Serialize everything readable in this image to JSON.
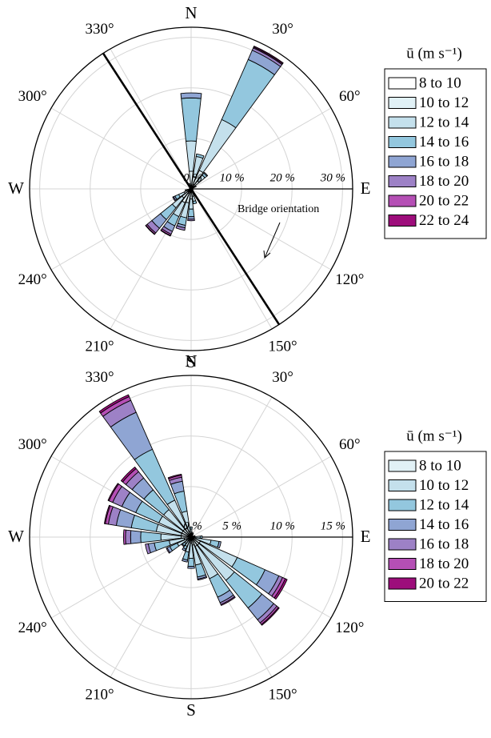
{
  "chart_data": [
    {
      "type": "polar-bar",
      "title": "",
      "directions": {
        "n": "N",
        "e": "E",
        "s": "S",
        "w": "W"
      },
      "angle_labels": [
        "30°",
        "60°",
        "120°",
        "150°",
        "210°",
        "240°",
        "300°",
        "330°"
      ],
      "radial_ticks": [
        "0 %",
        "10 %",
        "20 %",
        "30 %"
      ],
      "r_max": 32,
      "sector_count": 24,
      "legend_title": "ū (m s⁻¹)",
      "bins": [
        "8 to 10",
        "10 to 12",
        "12 to 14",
        "14 to 16",
        "16 to 18",
        "18 to 20",
        "20 to 22",
        "22 to 24"
      ],
      "colors": [
        "#ffffff",
        "#e1f1f6",
        "#c4e0ec",
        "#93c7de",
        "#8fa5d3",
        "#9d81c6",
        "#b54fb5",
        "#9d0d7b"
      ],
      "annotation": "Bridge orientation",
      "bridge_line_deg": 327,
      "sectors": [
        {
          "dir": 0,
          "values": [
            0.5,
            3,
            6,
            8.5,
            1,
            0,
            0,
            0
          ]
        },
        {
          "dir": 15,
          "values": [
            0.5,
            2,
            4,
            0.5,
            0,
            0,
            0,
            0
          ]
        },
        {
          "dir": 30,
          "values": [
            1,
            3,
            11,
            13,
            2,
            0.5,
            0.2,
            0.2
          ]
        },
        {
          "dir": 45,
          "values": [
            0.5,
            1.5,
            1.5,
            0.5,
            0.2,
            0,
            0,
            0
          ]
        },
        {
          "dir": 60,
          "values": [
            0.3,
            0.5,
            0.3,
            0,
            0,
            0,
            0,
            0
          ]
        },
        {
          "dir": 90,
          "values": [
            0.2,
            0.2,
            0,
            0,
            0,
            0,
            0,
            0
          ]
        },
        {
          "dir": 120,
          "values": [
            0.2,
            0.2,
            0,
            0,
            0,
            0,
            0,
            0
          ]
        },
        {
          "dir": 150,
          "values": [
            0.3,
            0.3,
            0.2,
            0,
            0,
            0,
            0,
            0
          ]
        },
        {
          "dir": 165,
          "values": [
            0.5,
            1,
            1,
            0.5,
            0,
            0,
            0,
            0
          ]
        },
        {
          "dir": 180,
          "values": [
            0.5,
            1.5,
            2,
            1.5,
            0.5,
            0.3,
            0,
            0
          ]
        },
        {
          "dir": 195,
          "values": [
            0.8,
            2,
            3,
            1.5,
            0.5,
            0.5,
            0,
            0
          ]
        },
        {
          "dir": 210,
          "values": [
            1,
            2,
            3,
            2,
            1.2,
            0.6,
            0.3,
            0.1
          ]
        },
        {
          "dir": 225,
          "values": [
            0.8,
            1.5,
            2.5,
            3,
            2.2,
            1.2,
            0.3,
            0.1
          ]
        },
        {
          "dir": 240,
          "values": [
            0.5,
            1,
            1.2,
            0.8,
            0.3,
            0.2,
            0,
            0
          ]
        },
        {
          "dir": 255,
          "values": [
            0.3,
            0.4,
            0.3,
            0.2,
            0,
            0,
            0,
            0
          ]
        },
        {
          "dir": 270,
          "values": [
            0.2,
            0.2,
            0,
            0,
            0,
            0,
            0,
            0
          ]
        },
        {
          "dir": 330,
          "values": [
            0.2,
            0.2,
            0,
            0,
            0,
            0,
            0,
            0
          ]
        },
        {
          "dir": 345,
          "values": [
            0.3,
            0.5,
            0.3,
            0,
            0,
            0,
            0,
            0
          ]
        }
      ]
    },
    {
      "type": "polar-bar",
      "title": "",
      "directions": {
        "n": "N",
        "e": "E",
        "s": "S",
        "w": "W"
      },
      "angle_labels": [
        "30°",
        "60°",
        "120°",
        "150°",
        "210°",
        "240°",
        "300°",
        "330°"
      ],
      "radial_ticks": [
        "0 %",
        "5 %",
        "10 %",
        "15 %"
      ],
      "r_max": 16,
      "sector_count": 24,
      "legend_title": "ū (m s⁻¹)",
      "bins": [
        "8 to 10",
        "10 to 12",
        "12 to 14",
        "14 to 16",
        "16 to 18",
        "18 to 20",
        "20 to 22"
      ],
      "colors": [
        "#e1f1f6",
        "#c4e0ec",
        "#93c7de",
        "#8fa5d3",
        "#9d81c6",
        "#b54fb5",
        "#9d0d7b"
      ],
      "sectors": [
        {
          "dir": 0,
          "values": [
            0.3,
            0.5,
            0.2,
            0,
            0,
            0,
            0
          ]
        },
        {
          "dir": 15,
          "values": [
            0.2,
            0.3,
            0,
            0,
            0,
            0,
            0
          ]
        },
        {
          "dir": 30,
          "values": [
            0.2,
            0.2,
            0,
            0,
            0,
            0,
            0
          ]
        },
        {
          "dir": 45,
          "values": [
            0.1,
            0.1,
            0,
            0,
            0,
            0,
            0
          ]
        },
        {
          "dir": 60,
          "values": [
            0.1,
            0.1,
            0,
            0,
            0,
            0,
            0
          ]
        },
        {
          "dir": 75,
          "values": [
            0.2,
            0.2,
            0,
            0,
            0,
            0,
            0
          ]
        },
        {
          "dir": 90,
          "values": [
            0.3,
            0.6,
            0.2,
            0,
            0,
            0,
            0
          ]
        },
        {
          "dir": 105,
          "values": [
            0.5,
            1.5,
            0.8,
            0.2,
            0,
            0,
            0
          ]
        },
        {
          "dir": 120,
          "values": [
            1,
            4,
            3,
            1.5,
            0.4,
            0.3,
            0.2
          ]
        },
        {
          "dir": 135,
          "values": [
            1,
            4.5,
            3.5,
            1.5,
            0.4,
            0.2,
            0.1
          ]
        },
        {
          "dir": 150,
          "values": [
            1,
            3.5,
            2,
            0.6,
            0.2,
            0.1,
            0
          ]
        },
        {
          "dir": 165,
          "values": [
            0.8,
            2,
            1.2,
            0.2,
            0.1,
            0,
            0
          ]
        },
        {
          "dir": 180,
          "values": [
            0.6,
            1.5,
            0.8,
            0.2,
            0,
            0,
            0
          ]
        },
        {
          "dir": 195,
          "values": [
            0.5,
            1,
            0.8,
            0.2,
            0,
            0,
            0
          ]
        },
        {
          "dir": 210,
          "values": [
            0.4,
            0.6,
            0.3,
            0.2,
            0,
            0,
            0
          ]
        },
        {
          "dir": 225,
          "values": [
            0.3,
            0.5,
            0.3,
            0.1,
            0,
            0,
            0
          ]
        },
        {
          "dir": 240,
          "values": [
            0.5,
            1,
            0.8,
            0.3,
            0.1,
            0,
            0
          ]
        },
        {
          "dir": 255,
          "values": [
            0.7,
            1.5,
            1.5,
            0.6,
            0.3,
            0,
            0
          ]
        },
        {
          "dir": 270,
          "values": [
            1,
            2,
            2,
            1,
            0.5,
            0.2,
            0
          ]
        },
        {
          "dir": 285,
          "values": [
            1,
            2.5,
            2.5,
            1.5,
            0.8,
            0.3,
            0.1
          ]
        },
        {
          "dir": 300,
          "values": [
            1,
            2.5,
            2.5,
            1.5,
            1,
            0.4,
            0.1
          ]
        },
        {
          "dir": 315,
          "values": [
            1,
            2.5,
            2.5,
            1.5,
            0.8,
            0.4,
            0.2
          ]
        },
        {
          "dir": 330,
          "values": [
            1,
            3,
            5.5,
            4,
            1.3,
            0.4,
            0.2
          ]
        },
        {
          "dir": 345,
          "values": [
            0.6,
            2,
            2,
            1,
            0.4,
            0.2,
            0.1
          ]
        }
      ]
    }
  ]
}
